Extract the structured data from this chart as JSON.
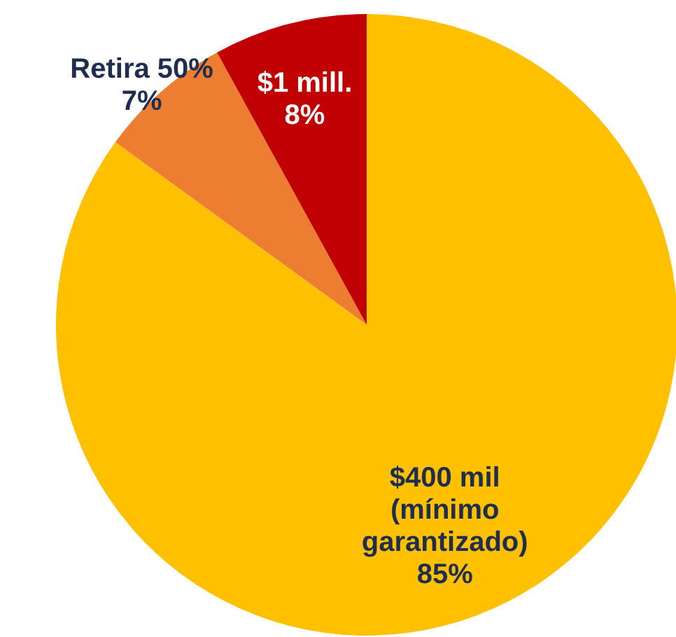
{
  "chart_data": {
    "type": "pie",
    "categories": [
      "$400 mil (mínimo garantizado)",
      "Retira 50%",
      "$1 mill."
    ],
    "values": [
      85,
      7,
      8
    ],
    "colors": [
      "#ffc000",
      "#ed7d31",
      "#c00000"
    ],
    "value_labels": [
      "85%",
      "7%",
      "8%"
    ]
  }
}
